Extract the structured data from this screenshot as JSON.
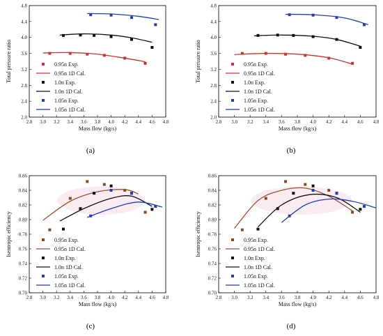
{
  "figure": {
    "panels": [
      {
        "caption": "(a)"
      },
      {
        "caption": "(b)"
      },
      {
        "caption": "(c)"
      },
      {
        "caption": "(d)"
      }
    ]
  },
  "chart_data": [
    {
      "type": "scatter",
      "caption": "(a)",
      "xlabel": "Mass flow (kg/s)",
      "ylabel": "Total pressure ratio",
      "xlim": [
        2.8,
        4.8
      ],
      "ylim": [
        2.0,
        4.8
      ],
      "xticks": [
        "2.8",
        "3.0",
        "3.2",
        "3.4",
        "3.6",
        "3.8",
        "4.0",
        "4.2",
        "4.4",
        "4.6",
        "4.8"
      ],
      "yticks": [
        "2.0",
        "2.4",
        "2.8",
        "3.2",
        "3.6",
        "4.0",
        "4.4",
        "4.8"
      ],
      "legend_position": "lower-left",
      "series": [
        {
          "name": "0.95n Exp.",
          "kind": "points",
          "color": "#d32f2f",
          "x": [
            3.1,
            3.4,
            3.65,
            3.9,
            4.2,
            4.5
          ],
          "y": [
            3.6,
            3.6,
            3.58,
            3.55,
            3.48,
            3.35
          ]
        },
        {
          "name": "0.95n 1D Cal.",
          "kind": "line",
          "color": "#d32f2f",
          "x": [
            3.0,
            3.4,
            3.8,
            4.2,
            4.5
          ],
          "y": [
            3.61,
            3.62,
            3.58,
            3.48,
            3.39
          ]
        },
        {
          "name": "1.0n  Exp.",
          "kind": "points",
          "color": "#111111",
          "x": [
            3.3,
            3.55,
            3.75,
            4.0,
            4.3,
            4.6
          ],
          "y": [
            4.05,
            4.06,
            4.05,
            4.02,
            3.95,
            3.75
          ]
        },
        {
          "name": "1.0n  1D Cal.",
          "kind": "line",
          "color": "#111111",
          "x": [
            3.25,
            3.6,
            4.0,
            4.3,
            4.6
          ],
          "y": [
            4.06,
            4.09,
            4.06,
            3.99,
            3.88
          ]
        },
        {
          "name": "1.05n Exp.",
          "kind": "points",
          "color": "#1f3fbf",
          "x": [
            3.7,
            4.0,
            4.3,
            4.65
          ],
          "y": [
            4.57,
            4.56,
            4.5,
            4.32
          ]
        },
        {
          "name": "1.05n 1D Cal.",
          "kind": "line",
          "color": "#1f3fbf",
          "x": [
            3.65,
            4.0,
            4.4,
            4.7
          ],
          "y": [
            4.6,
            4.59,
            4.53,
            4.45
          ]
        }
      ]
    },
    {
      "type": "scatter",
      "caption": "(b)",
      "xlabel": "Mass flow (kg/s)",
      "ylabel": "Total pressure ratio",
      "xlim": [
        2.8,
        4.8
      ],
      "ylim": [
        2.0,
        4.8
      ],
      "xticks": [
        "2.8",
        "3.0",
        "3.2",
        "3.4",
        "3.6",
        "3.8",
        "4.0",
        "4.2",
        "4.4",
        "4.6",
        "4.8"
      ],
      "yticks": [
        "2.0",
        "2.4",
        "2.8",
        "3.2",
        "3.6",
        "4.0",
        "4.4",
        "4.8"
      ],
      "legend_position": "lower-left",
      "series": [
        {
          "name": "0.95n Exp.",
          "kind": "points",
          "color": "#d32f2f",
          "x": [
            3.1,
            3.4,
            3.65,
            3.9,
            4.2,
            4.5
          ],
          "y": [
            3.6,
            3.6,
            3.58,
            3.55,
            3.48,
            3.35
          ]
        },
        {
          "name": "0.95n 1D Cal.",
          "kind": "line",
          "color": "#d32f2f",
          "x": [
            3.0,
            3.4,
            3.8,
            4.2,
            4.5
          ],
          "y": [
            3.57,
            3.6,
            3.58,
            3.49,
            3.33
          ]
        },
        {
          "name": "1.0n  Exp.",
          "kind": "points",
          "color": "#111111",
          "x": [
            3.3,
            3.55,
            3.75,
            4.0,
            4.3,
            4.6
          ],
          "y": [
            4.05,
            4.06,
            4.05,
            4.02,
            3.95,
            3.75
          ]
        },
        {
          "name": "1.0n  1D Cal.",
          "kind": "line",
          "color": "#111111",
          "x": [
            3.25,
            3.6,
            4.0,
            4.3,
            4.6
          ],
          "y": [
            4.04,
            4.06,
            4.03,
            3.95,
            3.78
          ]
        },
        {
          "name": "1.05n Exp.",
          "kind": "points",
          "color": "#1f3fbf",
          "x": [
            3.7,
            4.0,
            4.3,
            4.65
          ],
          "y": [
            4.57,
            4.56,
            4.5,
            4.32
          ]
        },
        {
          "name": "1.05n 1D Cal.",
          "kind": "line",
          "color": "#1f3fbf",
          "x": [
            3.65,
            4.0,
            4.4,
            4.7
          ],
          "y": [
            4.58,
            4.57,
            4.49,
            4.32
          ]
        }
      ]
    },
    {
      "type": "scatter",
      "caption": "(c)",
      "xlabel": "Mass flow (kg/s)",
      "ylabel": "Isentropic efficiency",
      "xlim": [
        2.8,
        4.8
      ],
      "ylim": [
        0.7,
        0.86
      ],
      "xticks": [
        "2.8",
        "3.0",
        "3.2",
        "3.4",
        "3.6",
        "3.8",
        "4.0",
        "4.2",
        "4.4",
        "4.6",
        "4.8"
      ],
      "yticks": [
        "0.70",
        "0.72",
        "0.74",
        "0.76",
        "0.78",
        "0.80",
        "0.82",
        "0.84",
        "0.86"
      ],
      "legend_position": "lower-left",
      "series": [
        {
          "name": "0.95n Exp.",
          "kind": "points",
          "color": "#8a4a1e",
          "x": [
            3.1,
            3.4,
            3.65,
            3.9,
            4.2,
            4.5
          ],
          "y": [
            0.786,
            0.829,
            0.852,
            0.848,
            0.84,
            0.81
          ]
        },
        {
          "name": "0.95n 1D Cal.",
          "kind": "line",
          "color": "#a0522d",
          "x": [
            3.0,
            3.4,
            3.8,
            4.2,
            4.4
          ],
          "y": [
            0.799,
            0.825,
            0.838,
            0.841,
            0.835
          ]
        },
        {
          "name": "1.0n  Exp.",
          "kind": "points",
          "color": "#111111",
          "x": [
            3.3,
            3.55,
            3.75,
            4.0,
            4.3,
            4.6
          ],
          "y": [
            0.787,
            0.815,
            0.836,
            0.846,
            0.836,
            0.814
          ]
        },
        {
          "name": "1.0n  1D Cal.",
          "kind": "line",
          "color": "#111111",
          "x": [
            3.25,
            3.6,
            4.0,
            4.3,
            4.6
          ],
          "y": [
            0.798,
            0.815,
            0.829,
            0.832,
            0.818
          ]
        },
        {
          "name": "1.05n Exp.",
          "kind": "points",
          "color": "#1f3fbf",
          "x": [
            3.7,
            4.0,
            4.3,
            4.65
          ],
          "y": [
            0.805,
            0.84,
            0.836,
            0.818
          ]
        },
        {
          "name": "1.05n 1D Cal.",
          "kind": "line",
          "color": "#1f3fbf",
          "x": [
            3.65,
            4.0,
            4.4,
            4.75
          ],
          "y": [
            0.803,
            0.815,
            0.824,
            0.817
          ]
        }
      ]
    },
    {
      "type": "scatter",
      "caption": "(d)",
      "xlabel": "Mass flow (kg/s)",
      "ylabel": "Isentropic efficiency",
      "xlim": [
        2.8,
        4.8
      ],
      "ylim": [
        0.7,
        0.86
      ],
      "xticks": [
        "2.8",
        "3.0",
        "3.2",
        "3.4",
        "3.6",
        "3.8",
        "4.0",
        "4.2",
        "4.4",
        "4.6",
        "4.8"
      ],
      "yticks": [
        "0.70",
        "0.72",
        "0.74",
        "0.76",
        "0.78",
        "0.80",
        "0.82",
        "0.84",
        "0.86"
      ],
      "legend_position": "lower-left",
      "series": [
        {
          "name": "0.95n Exp.",
          "kind": "points",
          "color": "#8a4a1e",
          "x": [
            3.1,
            3.4,
            3.65,
            3.9,
            4.2,
            4.5
          ],
          "y": [
            0.786,
            0.829,
            0.852,
            0.848,
            0.84,
            0.81
          ]
        },
        {
          "name": "0.95n 1D Cal.",
          "kind": "line",
          "color": "#a0522d",
          "x": [
            3.0,
            3.3,
            3.6,
            3.9,
            4.2,
            4.5
          ],
          "y": [
            0.788,
            0.826,
            0.84,
            0.843,
            0.832,
            0.812
          ]
        },
        {
          "name": "1.0n  Exp.",
          "kind": "points",
          "color": "#111111",
          "x": [
            3.3,
            3.55,
            3.75,
            4.0,
            4.3,
            4.6
          ],
          "y": [
            0.787,
            0.815,
            0.836,
            0.846,
            0.836,
            0.814
          ]
        },
        {
          "name": "1.0n  1D Cal.",
          "kind": "line",
          "color": "#111111",
          "x": [
            3.3,
            3.6,
            3.95,
            4.3,
            4.6
          ],
          "y": [
            0.79,
            0.82,
            0.834,
            0.83,
            0.81
          ]
        },
        {
          "name": "1.05n Exp.",
          "kind": "points",
          "color": "#1f3fbf",
          "x": [
            3.7,
            4.0,
            4.3,
            4.65
          ],
          "y": [
            0.805,
            0.84,
            0.836,
            0.818
          ]
        },
        {
          "name": "1.05n 1D Cal.",
          "kind": "line",
          "color": "#1f3fbf",
          "x": [
            3.6,
            3.9,
            4.2,
            4.5,
            4.8
          ],
          "y": [
            0.796,
            0.82,
            0.828,
            0.825,
            0.816
          ]
        }
      ]
    }
  ]
}
